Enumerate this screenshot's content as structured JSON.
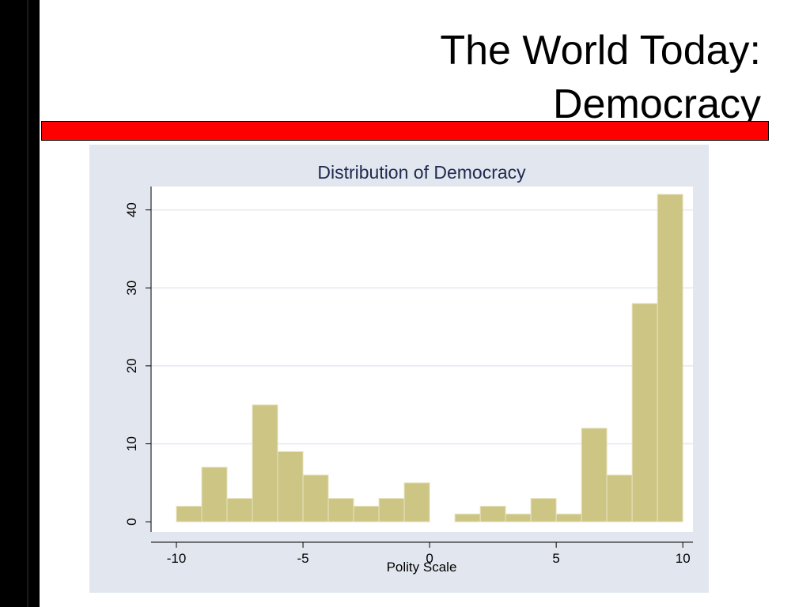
{
  "slide": {
    "title_line1": "The World Today:",
    "title_line2": "Democracy"
  },
  "colors": {
    "left_bar": "#000000",
    "accent_bar": "#ff0000",
    "panel_bg": "#e2e6ef",
    "plot_bg": "#ffffff",
    "bar_fill": "#ccc584",
    "bar_stroke": "#e8e3c0",
    "title_color": "#1e2a4f",
    "grid": "#e4e8f0"
  },
  "chart_data": {
    "type": "bar",
    "title": "Distribution of Democracy",
    "xlabel": "Polity Scale",
    "ylabel": "",
    "xlim": [
      -11,
      10.4
    ],
    "ylim": [
      -1.3,
      43
    ],
    "xticks": [
      -10,
      -5,
      0,
      5,
      10
    ],
    "yticks": [
      0,
      10,
      20,
      30,
      40
    ],
    "grid": true,
    "bin_width": 1,
    "bins": [
      {
        "start": -10,
        "value": 2
      },
      {
        "start": -9,
        "value": 7
      },
      {
        "start": -8,
        "value": 3
      },
      {
        "start": -7,
        "value": 15
      },
      {
        "start": -6,
        "value": 9
      },
      {
        "start": -5,
        "value": 6
      },
      {
        "start": -4,
        "value": 3
      },
      {
        "start": -3,
        "value": 2
      },
      {
        "start": -2,
        "value": 3
      },
      {
        "start": -1,
        "value": 5
      },
      {
        "start": 0,
        "value": 0
      },
      {
        "start": 1,
        "value": 1
      },
      {
        "start": 2,
        "value": 2
      },
      {
        "start": 3,
        "value": 1
      },
      {
        "start": 4,
        "value": 3
      },
      {
        "start": 5,
        "value": 1
      },
      {
        "start": 6,
        "value": 12
      },
      {
        "start": 7,
        "value": 6
      },
      {
        "start": 8,
        "value": 28
      },
      {
        "start": 9,
        "value": 42
      }
    ]
  }
}
